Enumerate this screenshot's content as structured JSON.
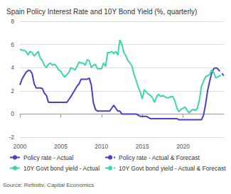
{
  "chart_data": {
    "type": "line",
    "title": "Spain Policy Interest Rate and 10Y Bond Yield (%, quarterly)",
    "source": "Source: Refinitiv, Capital Economics",
    "xlim": [
      2000,
      2025
    ],
    "xticks": [
      2000,
      2005,
      2010,
      2015,
      2020
    ],
    "ylim": [
      -2,
      8
    ],
    "yticks": [
      -2,
      0,
      2,
      4,
      6,
      8
    ],
    "grid": true,
    "legend": "bottom",
    "series": [
      {
        "name": "Policy rate - Actual",
        "color": "#4e3fc6",
        "line_style": "solid",
        "x": [
          2000,
          2000.25,
          2000.5,
          2000.75,
          2001,
          2001.25,
          2001.5,
          2001.75,
          2002,
          2002.25,
          2002.5,
          2002.75,
          2003,
          2003.25,
          2003.5,
          2003.75,
          2004,
          2004.25,
          2004.5,
          2004.75,
          2005,
          2005.25,
          2005.5,
          2005.75,
          2006,
          2006.25,
          2006.5,
          2006.75,
          2007,
          2007.25,
          2007.5,
          2007.75,
          2008,
          2008.25,
          2008.5,
          2008.75,
          2009,
          2009.25,
          2009.5,
          2009.75,
          2010,
          2010.25,
          2010.5,
          2010.75,
          2011,
          2011.25,
          2011.5,
          2011.75,
          2012,
          2012.25,
          2012.5,
          2012.75,
          2013,
          2013.25,
          2013.5,
          2013.75,
          2014,
          2014.25,
          2014.5,
          2014.75,
          2015,
          2015.25,
          2015.5,
          2015.75,
          2016,
          2016.25,
          2016.5,
          2016.75,
          2017,
          2017.25,
          2017.5,
          2017.75,
          2018,
          2018.25,
          2018.5,
          2018.75,
          2019,
          2019.25,
          2019.5,
          2019.75,
          2020,
          2020.25,
          2020.5,
          2020.75,
          2021,
          2021.25,
          2021.5,
          2021.75,
          2022,
          2022.25,
          2022.5,
          2022.75,
          2023,
          2023.25,
          2023.5,
          2023.75,
          2024
        ],
        "values": [
          2.5,
          3.0,
          3.3,
          3.6,
          3.75,
          3.75,
          3.5,
          2.6,
          2.25,
          2.25,
          2.25,
          2.2,
          1.8,
          1.6,
          1.0,
          1.0,
          1.0,
          1.0,
          1.0,
          1.0,
          1.0,
          1.0,
          1.0,
          1.0,
          1.25,
          1.5,
          1.8,
          2.1,
          2.4,
          2.6,
          3.0,
          3.0,
          3.0,
          3.0,
          3.1,
          2.5,
          1.0,
          0.4,
          0.25,
          0.25,
          0.25,
          0.25,
          0.25,
          0.25,
          0.25,
          0.5,
          0.75,
          0.5,
          0.25,
          0.25,
          0,
          0,
          0,
          0,
          0,
          0,
          0,
          0,
          -0.1,
          -0.2,
          -0.2,
          -0.2,
          -0.2,
          -0.3,
          -0.4,
          -0.4,
          -0.4,
          -0.4,
          -0.4,
          -0.4,
          -0.4,
          -0.4,
          -0.4,
          -0.4,
          -0.4,
          -0.4,
          -0.4,
          -0.4,
          -0.5,
          -0.5,
          -0.5,
          -0.5,
          -0.5,
          -0.5,
          -0.5,
          -0.5,
          -0.5,
          -0.5,
          -0.5,
          -0.5,
          -0.1,
          0.8,
          2.0,
          2.8,
          3.5,
          3.9,
          4.0
        ]
      },
      {
        "name": "Policy rate - Actual & Forecast",
        "color": "#4e3fc6",
        "line_style": "dashed",
        "x": [
          2024,
          2024.25,
          2024.5,
          2024.75,
          2025
        ],
        "values": [
          4.0,
          3.9,
          3.7,
          3.5,
          3.3
        ]
      },
      {
        "name": "10Y Govt bond yield - Actual",
        "color": "#3dd6a9",
        "line_style": "solid",
        "x": [
          2000,
          2000.25,
          2000.5,
          2000.75,
          2001,
          2001.25,
          2001.5,
          2001.75,
          2002,
          2002.25,
          2002.5,
          2002.75,
          2003,
          2003.25,
          2003.5,
          2003.75,
          2004,
          2004.25,
          2004.5,
          2004.75,
          2005,
          2005.25,
          2005.5,
          2005.75,
          2006,
          2006.25,
          2006.5,
          2006.75,
          2007,
          2007.25,
          2007.5,
          2007.75,
          2008,
          2008.25,
          2008.5,
          2008.75,
          2009,
          2009.25,
          2009.5,
          2009.75,
          2010,
          2010.25,
          2010.5,
          2010.75,
          2011,
          2011.25,
          2011.5,
          2011.75,
          2012,
          2012.25,
          2012.5,
          2012.75,
          2013,
          2013.25,
          2013.5,
          2013.75,
          2014,
          2014.25,
          2014.5,
          2014.75,
          2015,
          2015.25,
          2015.5,
          2015.75,
          2016,
          2016.25,
          2016.5,
          2016.75,
          2017,
          2017.25,
          2017.5,
          2017.75,
          2018,
          2018.25,
          2018.5,
          2018.75,
          2019,
          2019.25,
          2019.5,
          2019.75,
          2020,
          2020.25,
          2020.5,
          2020.75,
          2021,
          2021.25,
          2021.5,
          2021.75,
          2022,
          2022.25,
          2022.5,
          2022.75,
          2023,
          2023.25,
          2023.5,
          2023.75,
          2024
        ],
        "values": [
          5.6,
          5.5,
          5.5,
          5.4,
          5.1,
          5.4,
          5.3,
          5.0,
          5.2,
          5.4,
          4.8,
          4.6,
          4.2,
          4.0,
          4.3,
          4.4,
          4.2,
          4.3,
          4.1,
          3.8,
          3.7,
          3.4,
          3.2,
          3.4,
          3.6,
          4.0,
          3.9,
          3.8,
          4.1,
          4.5,
          4.4,
          4.4,
          4.2,
          4.7,
          4.6,
          4.0,
          4.2,
          4.3,
          3.9,
          3.9,
          3.9,
          4.4,
          4.1,
          5.3,
          5.3,
          5.4,
          5.2,
          5.4,
          5.1,
          6.4,
          6.0,
          5.3,
          5.0,
          4.6,
          4.4,
          4.1,
          3.4,
          2.9,
          2.3,
          1.9,
          1.3,
          2.1,
          1.9,
          1.7,
          1.6,
          1.4,
          1.0,
          1.5,
          1.7,
          1.5,
          1.6,
          1.5,
          1.4,
          1.4,
          1.5,
          1.5,
          1.1,
          0.5,
          0.2,
          0.4,
          0.5,
          0.6,
          0.3,
          0.1,
          0.3,
          0.4,
          0.3,
          0.5,
          1.2,
          2.4,
          2.8,
          3.2,
          3.3,
          3.4,
          3.8,
          3.6,
          3.1
        ]
      },
      {
        "name": "10Y Govt bond yield - Actual & Forecast",
        "color": "#3dd6a9",
        "line_style": "dashed",
        "x": [
          2024,
          2024.25,
          2024.5,
          2024.75,
          2025
        ],
        "values": [
          3.1,
          3.2,
          3.3,
          3.4,
          3.4
        ]
      }
    ]
  }
}
